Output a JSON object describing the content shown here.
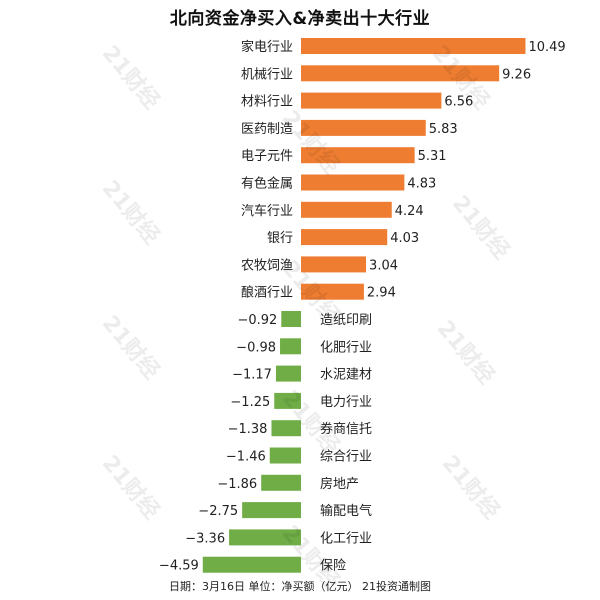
{
  "chart_data": {
    "type": "bar",
    "orientation": "horizontal",
    "title": "北向资金净买入&净卖出十大行业",
    "footer": "日期：3月16日 单位：净买额（亿元） 21投资通制图",
    "watermark": "21财经",
    "categories": [
      "家电行业",
      "机械行业",
      "材料行业",
      "医药制造",
      "电子元件",
      "有色金属",
      "汽车行业",
      "银行",
      "农牧饲渔",
      "酿酒行业",
      "造纸印刷",
      "化肥行业",
      "水泥建材",
      "电力行业",
      "券商信托",
      "综合行业",
      "房地产",
      "输配电气",
      "化工行业",
      "保险"
    ],
    "values": [
      10.49,
      9.26,
      6.56,
      5.83,
      5.31,
      4.83,
      4.24,
      4.03,
      3.04,
      2.94,
      -0.92,
      -0.98,
      -1.17,
      -1.25,
      -1.38,
      -1.46,
      -1.86,
      -2.75,
      -3.36,
      -4.59
    ],
    "value_labels": [
      "10.49",
      "9.26",
      "6.56",
      "5.83",
      "5.31",
      "4.83",
      "4.24",
      "4.03",
      "3.04",
      "2.94",
      "−0.92",
      "−0.98",
      "−1.17",
      "−1.25",
      "−1.38",
      "−1.46",
      "−1.86",
      "−2.75",
      "−3.36",
      "−4.59"
    ],
    "colors": {
      "positive": "#EE7D31",
      "negative": "#70AD47",
      "text": "#222222"
    },
    "grid": false,
    "legend": "none"
  }
}
